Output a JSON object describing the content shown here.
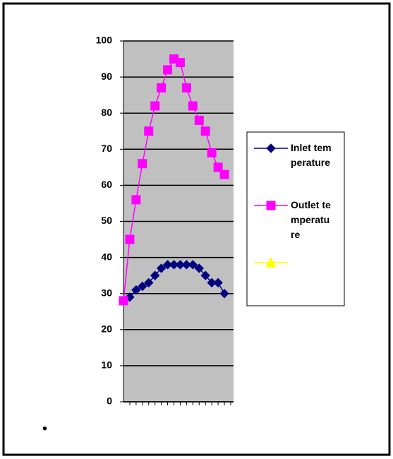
{
  "chart_data": {
    "type": "line",
    "categories": [
      null,
      null,
      null,
      null,
      null,
      null,
      null,
      null,
      null,
      null,
      null,
      null,
      null,
      null,
      null,
      null,
      null
    ],
    "series": [
      {
        "name": "Inlet temperature",
        "color": "#000080",
        "marker": "diamond",
        "values": [
          28,
          29,
          31,
          32,
          33,
          35,
          37,
          38,
          38,
          38,
          38,
          38,
          37,
          35,
          33,
          33,
          30
        ]
      },
      {
        "name": "Outlet temperature",
        "color": "#ff00ff",
        "marker": "square",
        "values": [
          28,
          45,
          56,
          66,
          75,
          82,
          87,
          92,
          95,
          94,
          87,
          82,
          78,
          75,
          69,
          65,
          63
        ]
      },
      {
        "name": null,
        "color": "#ffff00",
        "marker": "triangle",
        "values": [
          null,
          null,
          null,
          null,
          null,
          null,
          null,
          null,
          null,
          null,
          null,
          null,
          null,
          null,
          null,
          null,
          null
        ]
      }
    ],
    "ylim": [
      0,
      100
    ],
    "yticks": [
      0,
      10,
      20,
      30,
      40,
      50,
      60,
      70,
      80,
      90,
      100
    ],
    "grid": true,
    "plot_background": "#c0c0c0",
    "legend": "right"
  },
  "page": {
    "bullet": "•"
  }
}
